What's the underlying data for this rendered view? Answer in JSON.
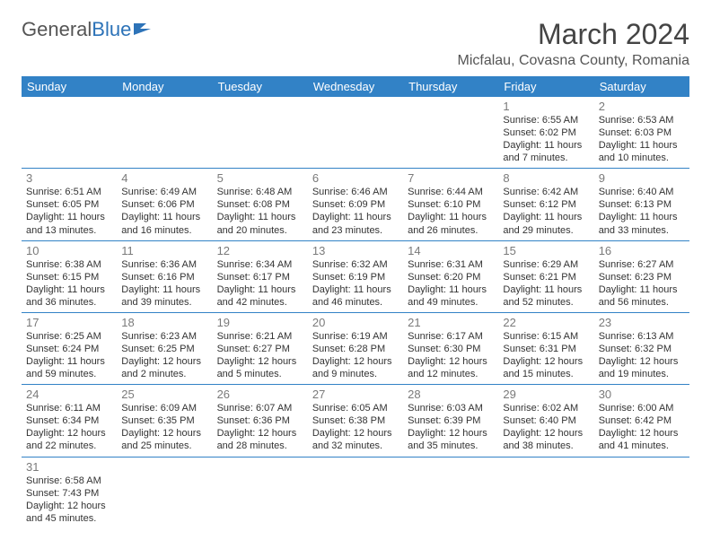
{
  "logo": {
    "text1": "General",
    "text2": "Blue"
  },
  "title": "March 2024",
  "location": "Micfalau, Covasna County, Romania",
  "colors": {
    "header_bg": "#3282c6",
    "header_text": "#ffffff",
    "rule": "#3282c6"
  },
  "weekdays": [
    "Sunday",
    "Monday",
    "Tuesday",
    "Wednesday",
    "Thursday",
    "Friday",
    "Saturday"
  ],
  "startOffset": 5,
  "days": [
    {
      "n": "1",
      "sunrise": "Sunrise: 6:55 AM",
      "sunset": "Sunset: 6:02 PM",
      "day": "Daylight: 11 hours and 7 minutes."
    },
    {
      "n": "2",
      "sunrise": "Sunrise: 6:53 AM",
      "sunset": "Sunset: 6:03 PM",
      "day": "Daylight: 11 hours and 10 minutes."
    },
    {
      "n": "3",
      "sunrise": "Sunrise: 6:51 AM",
      "sunset": "Sunset: 6:05 PM",
      "day": "Daylight: 11 hours and 13 minutes."
    },
    {
      "n": "4",
      "sunrise": "Sunrise: 6:49 AM",
      "sunset": "Sunset: 6:06 PM",
      "day": "Daylight: 11 hours and 16 minutes."
    },
    {
      "n": "5",
      "sunrise": "Sunrise: 6:48 AM",
      "sunset": "Sunset: 6:08 PM",
      "day": "Daylight: 11 hours and 20 minutes."
    },
    {
      "n": "6",
      "sunrise": "Sunrise: 6:46 AM",
      "sunset": "Sunset: 6:09 PM",
      "day": "Daylight: 11 hours and 23 minutes."
    },
    {
      "n": "7",
      "sunrise": "Sunrise: 6:44 AM",
      "sunset": "Sunset: 6:10 PM",
      "day": "Daylight: 11 hours and 26 minutes."
    },
    {
      "n": "8",
      "sunrise": "Sunrise: 6:42 AM",
      "sunset": "Sunset: 6:12 PM",
      "day": "Daylight: 11 hours and 29 minutes."
    },
    {
      "n": "9",
      "sunrise": "Sunrise: 6:40 AM",
      "sunset": "Sunset: 6:13 PM",
      "day": "Daylight: 11 hours and 33 minutes."
    },
    {
      "n": "10",
      "sunrise": "Sunrise: 6:38 AM",
      "sunset": "Sunset: 6:15 PM",
      "day": "Daylight: 11 hours and 36 minutes."
    },
    {
      "n": "11",
      "sunrise": "Sunrise: 6:36 AM",
      "sunset": "Sunset: 6:16 PM",
      "day": "Daylight: 11 hours and 39 minutes."
    },
    {
      "n": "12",
      "sunrise": "Sunrise: 6:34 AM",
      "sunset": "Sunset: 6:17 PM",
      "day": "Daylight: 11 hours and 42 minutes."
    },
    {
      "n": "13",
      "sunrise": "Sunrise: 6:32 AM",
      "sunset": "Sunset: 6:19 PM",
      "day": "Daylight: 11 hours and 46 minutes."
    },
    {
      "n": "14",
      "sunrise": "Sunrise: 6:31 AM",
      "sunset": "Sunset: 6:20 PM",
      "day": "Daylight: 11 hours and 49 minutes."
    },
    {
      "n": "15",
      "sunrise": "Sunrise: 6:29 AM",
      "sunset": "Sunset: 6:21 PM",
      "day": "Daylight: 11 hours and 52 minutes."
    },
    {
      "n": "16",
      "sunrise": "Sunrise: 6:27 AM",
      "sunset": "Sunset: 6:23 PM",
      "day": "Daylight: 11 hours and 56 minutes."
    },
    {
      "n": "17",
      "sunrise": "Sunrise: 6:25 AM",
      "sunset": "Sunset: 6:24 PM",
      "day": "Daylight: 11 hours and 59 minutes."
    },
    {
      "n": "18",
      "sunrise": "Sunrise: 6:23 AM",
      "sunset": "Sunset: 6:25 PM",
      "day": "Daylight: 12 hours and 2 minutes."
    },
    {
      "n": "19",
      "sunrise": "Sunrise: 6:21 AM",
      "sunset": "Sunset: 6:27 PM",
      "day": "Daylight: 12 hours and 5 minutes."
    },
    {
      "n": "20",
      "sunrise": "Sunrise: 6:19 AM",
      "sunset": "Sunset: 6:28 PM",
      "day": "Daylight: 12 hours and 9 minutes."
    },
    {
      "n": "21",
      "sunrise": "Sunrise: 6:17 AM",
      "sunset": "Sunset: 6:30 PM",
      "day": "Daylight: 12 hours and 12 minutes."
    },
    {
      "n": "22",
      "sunrise": "Sunrise: 6:15 AM",
      "sunset": "Sunset: 6:31 PM",
      "day": "Daylight: 12 hours and 15 minutes."
    },
    {
      "n": "23",
      "sunrise": "Sunrise: 6:13 AM",
      "sunset": "Sunset: 6:32 PM",
      "day": "Daylight: 12 hours and 19 minutes."
    },
    {
      "n": "24",
      "sunrise": "Sunrise: 6:11 AM",
      "sunset": "Sunset: 6:34 PM",
      "day": "Daylight: 12 hours and 22 minutes."
    },
    {
      "n": "25",
      "sunrise": "Sunrise: 6:09 AM",
      "sunset": "Sunset: 6:35 PM",
      "day": "Daylight: 12 hours and 25 minutes."
    },
    {
      "n": "26",
      "sunrise": "Sunrise: 6:07 AM",
      "sunset": "Sunset: 6:36 PM",
      "day": "Daylight: 12 hours and 28 minutes."
    },
    {
      "n": "27",
      "sunrise": "Sunrise: 6:05 AM",
      "sunset": "Sunset: 6:38 PM",
      "day": "Daylight: 12 hours and 32 minutes."
    },
    {
      "n": "28",
      "sunrise": "Sunrise: 6:03 AM",
      "sunset": "Sunset: 6:39 PM",
      "day": "Daylight: 12 hours and 35 minutes."
    },
    {
      "n": "29",
      "sunrise": "Sunrise: 6:02 AM",
      "sunset": "Sunset: 6:40 PM",
      "day": "Daylight: 12 hours and 38 minutes."
    },
    {
      "n": "30",
      "sunrise": "Sunrise: 6:00 AM",
      "sunset": "Sunset: 6:42 PM",
      "day": "Daylight: 12 hours and 41 minutes."
    },
    {
      "n": "31",
      "sunrise": "Sunrise: 6:58 AM",
      "sunset": "Sunset: 7:43 PM",
      "day": "Daylight: 12 hours and 45 minutes."
    }
  ]
}
